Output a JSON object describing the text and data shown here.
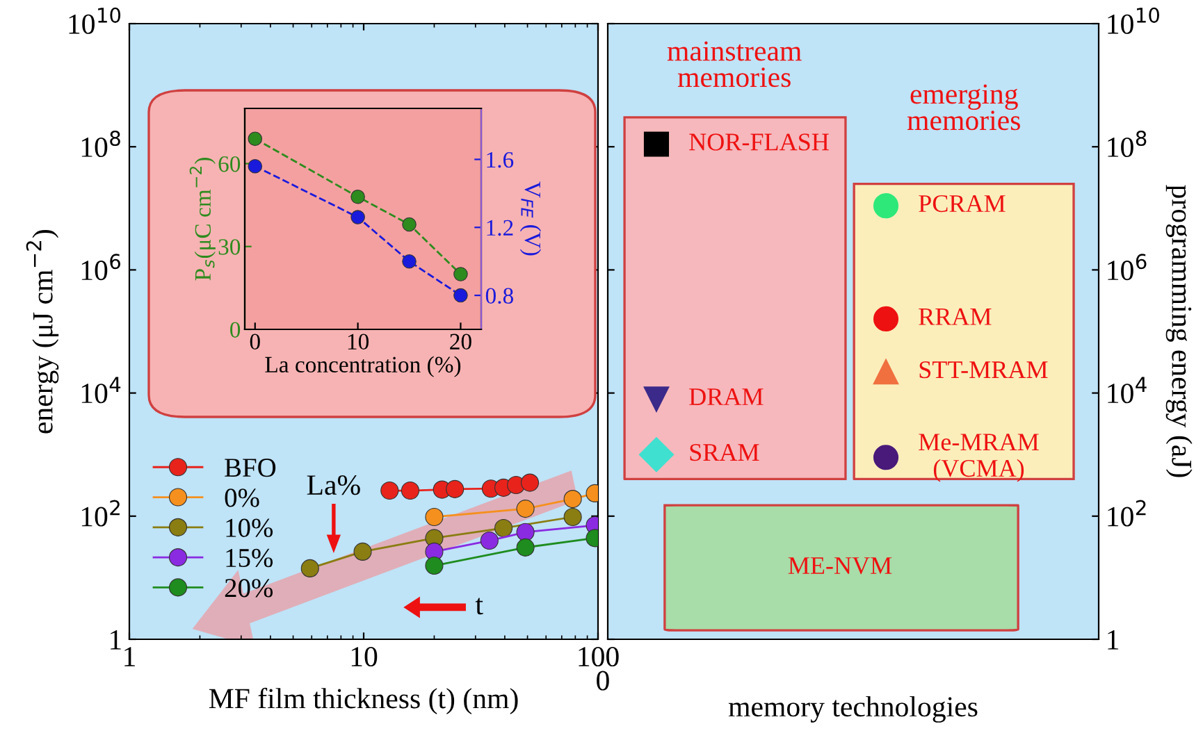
{
  "chart_data": [
    {
      "type": "line",
      "xlabel": "MF film thickness (t) (nm)",
      "ylabel": "energy (μJ cm$^{−2}$)",
      "log": "xy",
      "xlim": [
        1,
        100
      ],
      "ylim": [
        1,
        10000000000
      ],
      "xticks": [
        1,
        10,
        100
      ],
      "yticks": [
        1,
        {
          "value": 100,
          "label": "10$^{2}$"
        },
        {
          "value": 10000,
          "label": "10$^{4}$"
        },
        {
          "value": 1000000,
          "label": "10$^{6}$"
        },
        {
          "value": 100000000,
          "label": "10$^{8}$"
        },
        {
          "value": 10000000000,
          "label": "10$^{10}$"
        }
      ],
      "legend": "bottom left",
      "marker": "circle",
      "annotations": [
        "La%",
        "t"
      ],
      "series": [
        {
          "name": "BFO",
          "color": "#e8231c",
          "x": [
            12.9,
            15.8,
            21.6,
            24.5,
            34.9,
            39.5,
            44.7,
            51.2
          ],
          "values": [
            260,
            260,
            270,
            275,
            280,
            290,
            320,
            350
          ]
        },
        {
          "name": "0%",
          "color": "#f5901e",
          "x": [
            20,
            49,
            78,
            97
          ],
          "values": [
            97,
            132,
            190,
            235
          ]
        },
        {
          "name": "10%",
          "color": "#8a7d12",
          "x": [
            5.9,
            9.9,
            20,
            39.5,
            78
          ],
          "values": [
            14.2,
            26.5,
            44,
            64,
            97
          ]
        },
        {
          "name": "15%",
          "color": "#8a2be2",
          "x": [
            20,
            34.4,
            49,
            97
          ],
          "values": [
            26.5,
            40,
            55,
            71
          ]
        },
        {
          "name": "20%",
          "color": "#1e8c1e",
          "x": [
            20,
            49,
            97
          ],
          "values": [
            15.7,
            31,
            44
          ]
        }
      ]
    },
    {
      "type": "line",
      "xlabel": "La concentration (%)",
      "ylabel": "P$_{s}$(μC cm$^{−2}$)",
      "y2label": "V$_{FE}$ (V)",
      "x": [
        0,
        10,
        15,
        20
      ],
      "xlim": [
        -1,
        22
      ],
      "xticks": [
        0,
        10,
        20
      ],
      "ylim": [
        0,
        80
      ],
      "yticks": [
        0,
        30,
        60
      ],
      "y2lim": [
        0.6,
        1.9
      ],
      "y2ticks": [
        0.8,
        1.2,
        1.6
      ],
      "marker": "circle",
      "line_style": "dashed",
      "series": [
        {
          "color": "#2e8b1e",
          "values": [
            69,
            48,
            38,
            20
          ]
        },
        {
          "color": "#1a1adc",
          "axis": "y2",
          "values": [
            1.56,
            1.26,
            1.0,
            0.8
          ]
        }
      ]
    },
    {
      "type": "scatter",
      "xlabel": "memory technologies",
      "ylabel": "programming energy (aJ)",
      "log": true,
      "ylim": [
        1,
        10000000000
      ],
      "yticks": [
        1,
        {
          "value": 100,
          "label": "10$^{2}$"
        },
        {
          "value": 10000,
          "label": "10$^{4}$"
        },
        {
          "value": 1000000,
          "label": "10$^{6}$"
        },
        {
          "value": 100000000,
          "label": "10$^{8}$"
        },
        {
          "value": 10000000000,
          "label": "10$^{10}$"
        }
      ],
      "categories": [
        null,
        null
      ],
      "annotations": [
        "mainstream\nmemories",
        "emerging\nmemories",
        "0"
      ],
      "bands": [
        {
          "axis": "y",
          "from": 1.4,
          "to": 150,
          "label": "ME-NVM",
          "color": "#a8dca8"
        }
      ],
      "series": [
        {
          "name": "NOR-FLASH",
          "color": "#000000",
          "marker": "square",
          "values": [
            110000000,
            null
          ]
        },
        {
          "name": "DRAM",
          "color": "#3b2a8a",
          "marker": "triangle_down",
          "values": [
            8000,
            null
          ]
        },
        {
          "name": "SRAM",
          "color": "#40e0d0",
          "marker": "diamond",
          "values": [
            1000,
            null
          ]
        },
        {
          "name": "PCRAM",
          "color": "#2ee87a",
          "values": [
            null,
            11000000
          ]
        },
        {
          "name": "RRAM",
          "color": "#ee1111",
          "marker": "circle",
          "values": [
            null,
            160000
          ]
        },
        {
          "name": "STT-MRAM",
          "color": "#f07040",
          "marker": "triangle",
          "values": [
            null,
            22000
          ]
        },
        {
          "name": "Me-MRAM\n(VCMA)",
          "color": "#4a1a7a",
          "values": [
            null,
            900
          ]
        }
      ]
    }
  ]
}
